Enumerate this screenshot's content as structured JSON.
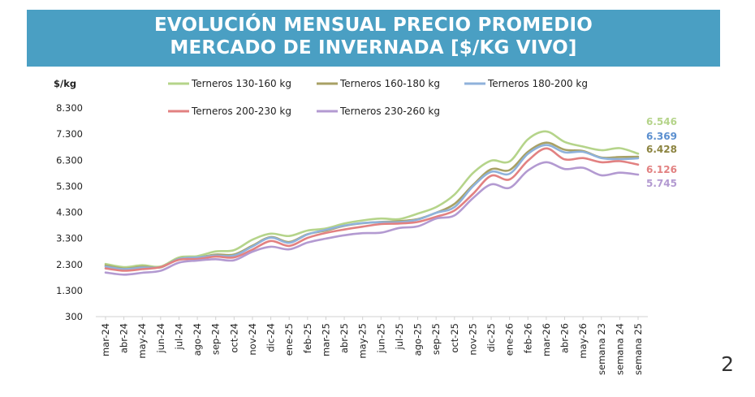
{
  "title_lines": [
    "EVOLUCIÓN MENSUAL PRECIO PROMEDIO",
    "MERCADO DE INVERNADA [$/KG VIVO]"
  ],
  "page_number": "2",
  "chart_data": {
    "type": "line",
    "title": "EVOLUCIÓN MENSUAL PRECIO PROMEDIO MERCADO DE INVERNADA [$/KG VIVO]",
    "ylabel": "$/kg",
    "xlabel": "",
    "ylim": [
      300,
      8300
    ],
    "yticks": [
      300,
      1300,
      2300,
      3300,
      4300,
      5300,
      6300,
      7300,
      8300
    ],
    "ytick_labels": [
      "300",
      "1.300",
      "2.300",
      "3.300",
      "4.300",
      "5.300",
      "6.300",
      "7.300",
      "8.300"
    ],
    "grid": false,
    "legend_position": "top",
    "categories": [
      "mar-24",
      "abr-24",
      "may-24",
      "jun-24",
      "jul-24",
      "ago-24",
      "sep-24",
      "oct-24",
      "nov-24",
      "dic-24",
      "ene-25",
      "feb-25",
      "mar-25",
      "abr-25",
      "may-25",
      "jun-25",
      "jul-25",
      "ago-25",
      "sep-25",
      "oct-25",
      "nov-25",
      "dic-25",
      "ene-26",
      "feb-26",
      "mar-26",
      "abr-26",
      "may-26",
      "semana 23",
      "semana 24",
      "semana 25"
    ],
    "series": [
      {
        "name": "Terneros 130-160 kg",
        "color": "#b5d48a",
        "end_label": "6.546",
        "values": [
          2320,
          2200,
          2270,
          2220,
          2570,
          2620,
          2800,
          2850,
          3250,
          3480,
          3390,
          3600,
          3680,
          3870,
          3990,
          4060,
          4040,
          4250,
          4500,
          4980,
          5800,
          6280,
          6250,
          7100,
          7400,
          7000,
          6820,
          6680,
          6760,
          6546
        ]
      },
      {
        "name": "Terneros 160-180 kg",
        "color": "#a8a165",
        "end_label": "6.428",
        "values": [
          2260,
          2140,
          2210,
          2190,
          2520,
          2560,
          2680,
          2680,
          3020,
          3350,
          3160,
          3460,
          3600,
          3780,
          3880,
          3930,
          3960,
          4040,
          4280,
          4620,
          5340,
          5950,
          5920,
          6620,
          6970,
          6700,
          6650,
          6400,
          6420,
          6428
        ]
      },
      {
        "name": "Terneros 180-200 kg",
        "color": "#8fb2db",
        "end_label": "6.369",
        "values": [
          2220,
          2120,
          2180,
          2200,
          2510,
          2570,
          2640,
          2640,
          2990,
          3330,
          3130,
          3450,
          3630,
          3790,
          3890,
          3920,
          3920,
          4020,
          4280,
          4500,
          5290,
          5850,
          5780,
          6540,
          6880,
          6600,
          6620,
          6380,
          6340,
          6369
        ]
      },
      {
        "name": "Terneros 200-230 kg",
        "color": "#e28181",
        "end_label": "6.126",
        "values": [
          2150,
          2060,
          2120,
          2200,
          2480,
          2510,
          2600,
          2570,
          2870,
          3200,
          3010,
          3320,
          3510,
          3640,
          3750,
          3850,
          3870,
          3930,
          4130,
          4370,
          5000,
          5700,
          5560,
          6280,
          6750,
          6330,
          6380,
          6220,
          6260,
          6126
        ]
      },
      {
        "name": "Terneros 230-260 kg",
        "color": "#b39ad1",
        "end_label": "5.745",
        "values": [
          1990,
          1910,
          1980,
          2060,
          2370,
          2450,
          2500,
          2460,
          2790,
          2980,
          2880,
          3140,
          3290,
          3420,
          3500,
          3520,
          3700,
          3760,
          4060,
          4180,
          4840,
          5370,
          5240,
          5900,
          6220,
          5960,
          6010,
          5720,
          5820,
          5745
        ]
      }
    ]
  }
}
